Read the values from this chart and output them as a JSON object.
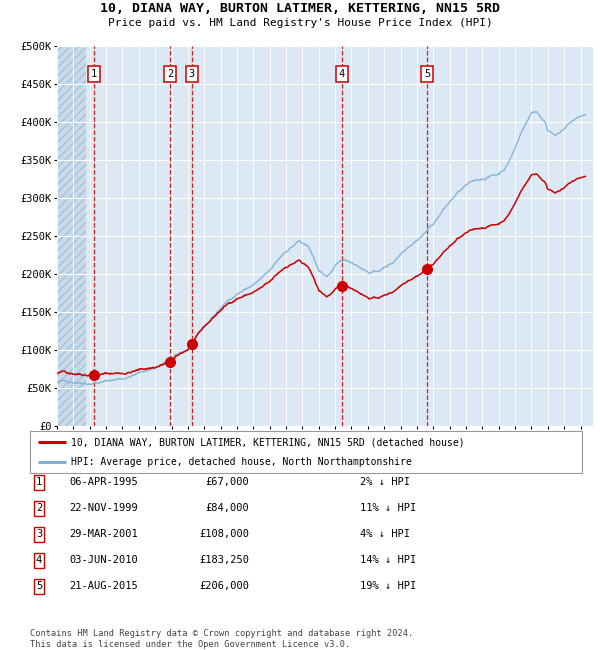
{
  "title": "10, DIANA WAY, BURTON LATIMER, KETTERING, NN15 5RD",
  "subtitle": "Price paid vs. HM Land Registry's House Price Index (HPI)",
  "bg_color": "#dce9f5",
  "grid_color": "#ffffff",
  "red_line_color": "#cc0000",
  "blue_line_color": "#7bafd4",
  "sale_marker_color": "#cc0000",
  "vline_color": "#cc0000",
  "ylim": [
    0,
    500000
  ],
  "yticks": [
    0,
    50000,
    100000,
    150000,
    200000,
    250000,
    300000,
    350000,
    400000,
    450000,
    500000
  ],
  "ytick_labels": [
    "£0",
    "£50K",
    "£100K",
    "£150K",
    "£200K",
    "£250K",
    "£300K",
    "£350K",
    "£400K",
    "£450K",
    "£500K"
  ],
  "xlim_start": 1993.0,
  "xlim_end": 2025.75,
  "xticks": [
    1993,
    1994,
    1995,
    1996,
    1997,
    1998,
    1999,
    2000,
    2001,
    2002,
    2003,
    2004,
    2005,
    2006,
    2007,
    2008,
    2009,
    2010,
    2011,
    2012,
    2013,
    2014,
    2015,
    2016,
    2017,
    2018,
    2019,
    2020,
    2021,
    2022,
    2023,
    2024,
    2025
  ],
  "sale_dates": [
    1995.27,
    1999.9,
    2001.24,
    2010.42,
    2015.64
  ],
  "sale_prices": [
    67000,
    84000,
    108000,
    183250,
    206000
  ],
  "sale_labels": [
    "1",
    "2",
    "3",
    "4",
    "5"
  ],
  "legend_red": "10, DIANA WAY, BURTON LATIMER, KETTERING, NN15 5RD (detached house)",
  "legend_blue": "HPI: Average price, detached house, North Northamptonshire",
  "table_rows": [
    [
      "1",
      "06-APR-1995",
      "£67,000",
      "2% ↓ HPI"
    ],
    [
      "2",
      "22-NOV-1999",
      "£84,000",
      "11% ↓ HPI"
    ],
    [
      "3",
      "29-MAR-2001",
      "£108,000",
      "4% ↓ HPI"
    ],
    [
      "4",
      "03-JUN-2010",
      "£183,250",
      "14% ↓ HPI"
    ],
    [
      "5",
      "21-AUG-2015",
      "£206,000",
      "19% ↓ HPI"
    ]
  ],
  "footnote": "Contains HM Land Registry data © Crown copyright and database right 2024.\nThis data is licensed under the Open Government Licence v3.0."
}
